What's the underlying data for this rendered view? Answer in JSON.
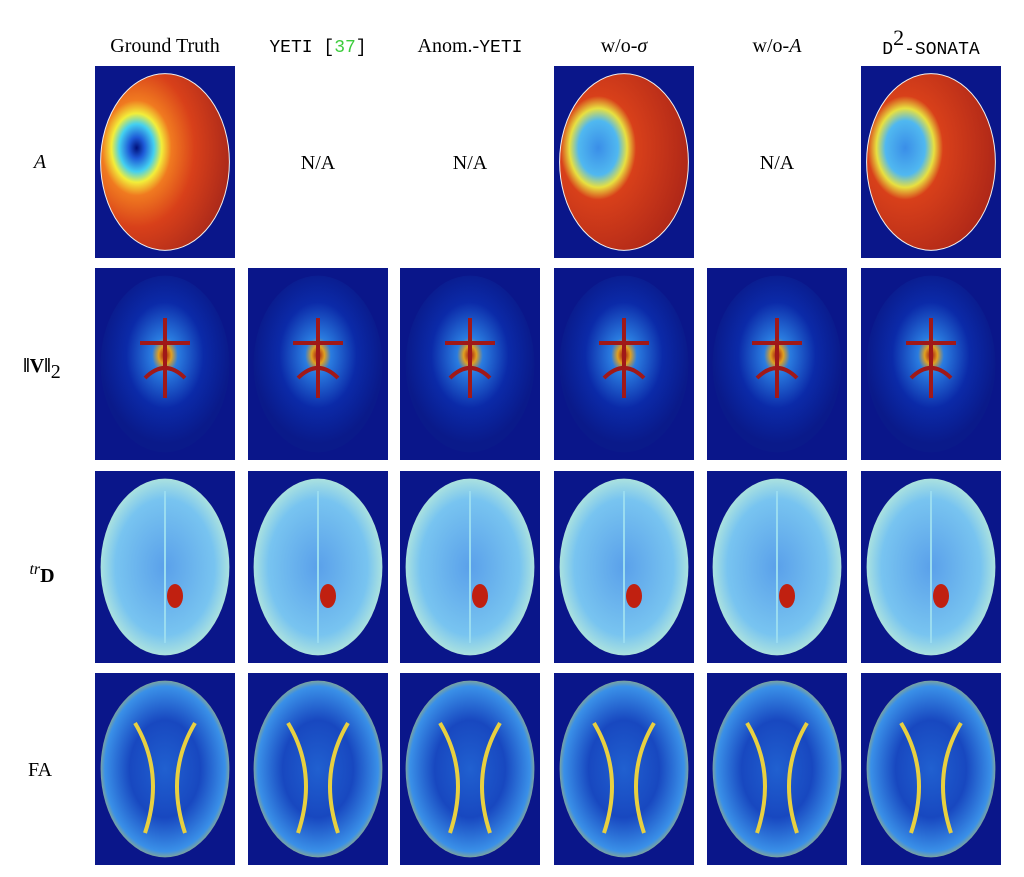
{
  "columns": [
    [
      "Ground Truth"
    ],
    [
      "YETI [",
      "37",
      "]"
    ],
    [
      "Anom.-",
      "YETI"
    ],
    [
      "w/o-",
      "σ"
    ],
    [
      "w/o-",
      "A"
    ],
    [
      "D",
      "2",
      "-SONATA"
    ]
  ],
  "rows": [
    {
      "label": [
        "A"
      ],
      "cells": [
        null,
        "N/A",
        "N/A",
        null,
        "N/A",
        null
      ]
    },
    {
      "label": [
        "‖V‖",
        "2"
      ],
      "cells": [
        null,
        null,
        null,
        null,
        null,
        null
      ]
    },
    {
      "label": [
        "tr",
        "D"
      ],
      "cells": [
        null,
        null,
        null,
        null,
        null,
        null
      ]
    },
    {
      "label": [
        "FA"
      ],
      "cells": [
        null,
        null,
        null,
        null,
        null,
        null
      ]
    }
  ]
}
